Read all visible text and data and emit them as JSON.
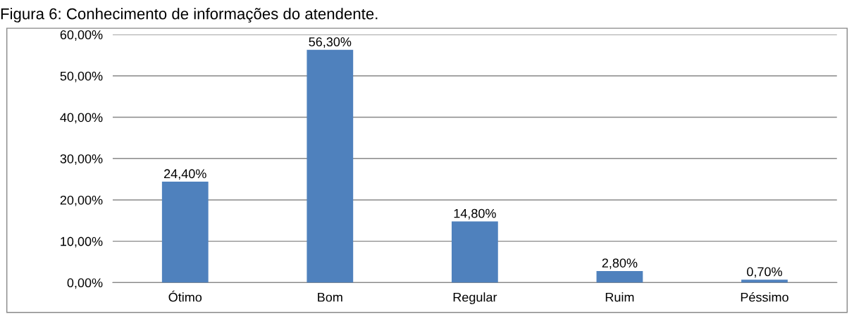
{
  "chart_data": {
    "type": "bar",
    "title": "Figura 6: Conhecimento de informações do atendente.",
    "categories": [
      "Ótimo",
      "Bom",
      "Regular",
      "Ruim",
      "Péssimo"
    ],
    "values": [
      24.4,
      56.3,
      14.8,
      2.8,
      0.7
    ],
    "value_labels": [
      "24,40%",
      "56,30%",
      "14,80%",
      "2,80%",
      "0,70%"
    ],
    "color": "#4f81bd",
    "ylim": [
      0,
      60
    ],
    "yticks": [
      {
        "value": 0,
        "label": "0,00%"
      },
      {
        "value": 10,
        "label": "10,00%"
      },
      {
        "value": 20,
        "label": "20,00%"
      },
      {
        "value": 30,
        "label": "30,00%"
      },
      {
        "value": 40,
        "label": "40,00%"
      },
      {
        "value": 50,
        "label": "50,00%"
      },
      {
        "value": 60,
        "label": "60,00%"
      }
    ],
    "grid": "y",
    "legend": false
  }
}
